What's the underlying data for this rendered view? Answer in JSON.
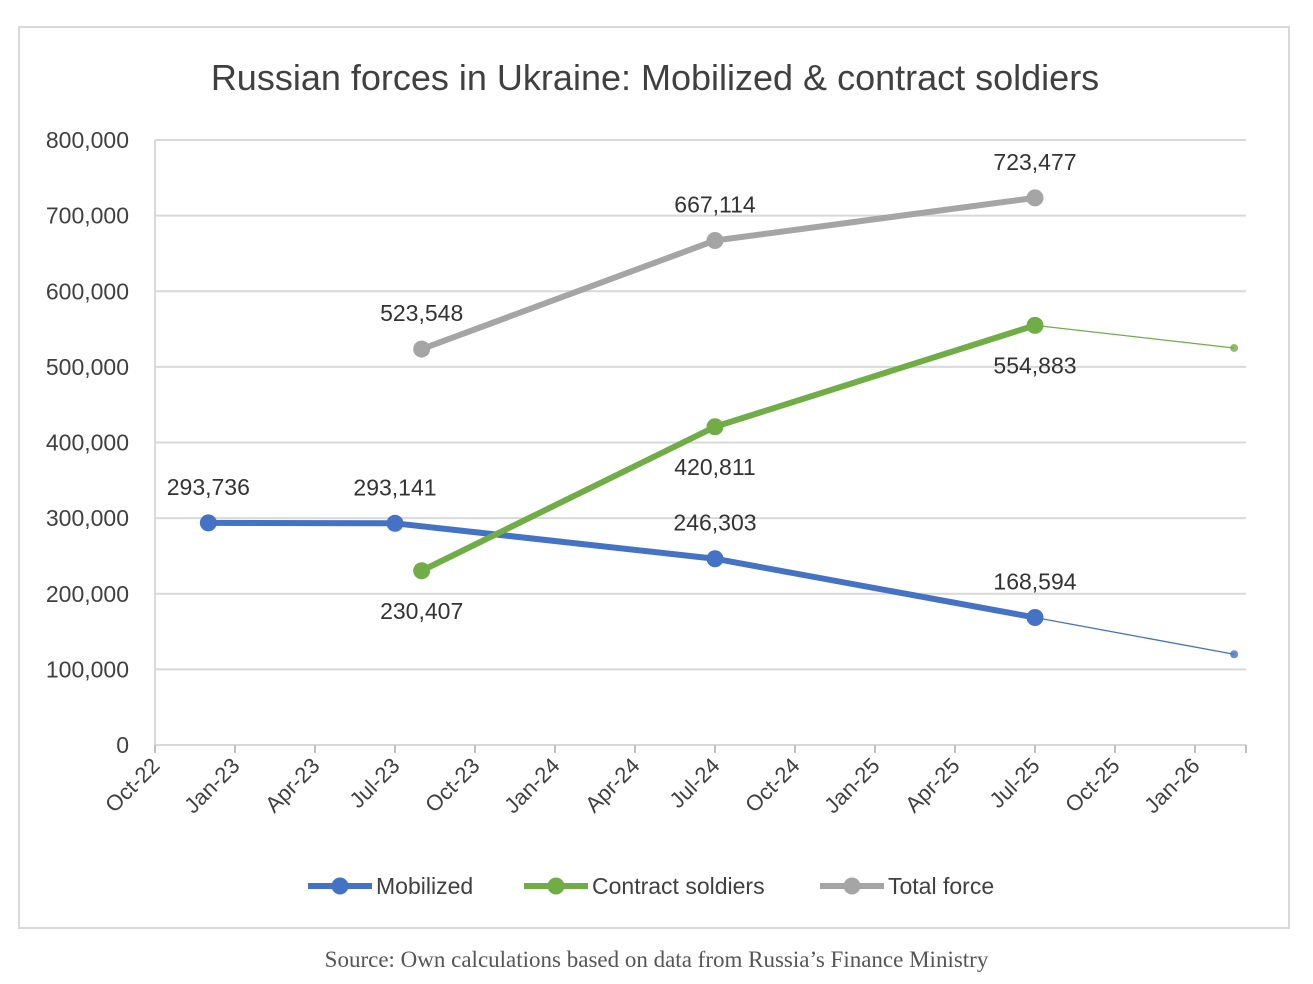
{
  "chart_data": {
    "type": "line",
    "title": "Russian forces in Ukraine: Mobilized & contract soldiers",
    "ylim": [
      0,
      800000
    ],
    "yticks": [
      0,
      100000,
      200000,
      300000,
      400000,
      500000,
      600000,
      700000,
      800000
    ],
    "ytick_labels": [
      "0",
      "100,000",
      "200,000",
      "300,000",
      "400,000",
      "500,000",
      "600,000",
      "700,000",
      "800,000"
    ],
    "xtick_labels": [
      "Oct-22",
      "Jan-23",
      "Apr-23",
      "Jul-23",
      "Oct-23",
      "Jan-24",
      "Apr-24",
      "Jul-24",
      "Oct-24",
      "Jan-25",
      "Apr-25",
      "Jul-25",
      "Oct-25",
      "Jan-26"
    ],
    "grid": true,
    "legend_position": "bottom",
    "series": [
      {
        "name": "Mobilized",
        "color": "#4472c4",
        "points": [
          {
            "x": "2022-12-01",
            "y": 293736,
            "label": "293,736",
            "label_pos": "above"
          },
          {
            "x": "2023-07-01",
            "y": 293141,
            "label": "293,141",
            "label_pos": "above"
          },
          {
            "x": "2024-07-01",
            "y": 246303,
            "label": "246,303",
            "label_pos": "above"
          },
          {
            "x": "2025-07-01",
            "y": 168594,
            "label": "168,594",
            "label_pos": "above"
          }
        ],
        "projection": [
          {
            "x": "2025-07-01",
            "y": 168594
          },
          {
            "x": "2026-02-15",
            "y": 120000
          }
        ]
      },
      {
        "name": "Contract soldiers",
        "color": "#70ad47",
        "points": [
          {
            "x": "2023-08-01",
            "y": 230407,
            "label": "230,407",
            "label_pos": "below"
          },
          {
            "x": "2024-07-01",
            "y": 420811,
            "label": "420,811",
            "label_pos": "below"
          },
          {
            "x": "2025-07-01",
            "y": 554883,
            "label": "554,883",
            "label_pos": "below"
          }
        ],
        "projection": [
          {
            "x": "2025-07-01",
            "y": 554883
          },
          {
            "x": "2026-02-15",
            "y": 525000
          }
        ]
      },
      {
        "name": "Total force",
        "color": "#a5a5a5",
        "points": [
          {
            "x": "2023-08-01",
            "y": 523548,
            "label": "523,548",
            "label_pos": "above"
          },
          {
            "x": "2024-07-01",
            "y": 667114,
            "label": "667,114",
            "label_pos": "above"
          },
          {
            "x": "2025-07-01",
            "y": 723477,
            "label": "723,477",
            "label_pos": "above"
          }
        ]
      }
    ]
  },
  "source": "Source: Own calculations based on data from Russia’s Finance Ministry"
}
